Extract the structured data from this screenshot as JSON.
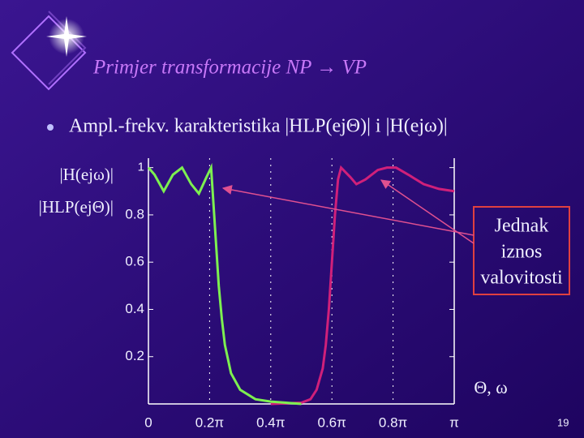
{
  "slide_title": "Primjer transformacije NP → VP",
  "bullet": "Ampl.-frekv. karakteristika |HLP(ejΘ)| i |H(ejω)|",
  "page_number": "19",
  "chart_data": {
    "type": "line",
    "xlabel": "Θ, ω",
    "annotation": [
      "Jednak",
      "iznos",
      "valovitosti"
    ],
    "xlim": [
      0,
      1
    ],
    "ylim": [
      0,
      1.04
    ],
    "xticks": [
      0,
      {
        "value": 0.2,
        "label": "0.2π"
      },
      {
        "value": 0.4,
        "label": "0.4π"
      },
      {
        "value": 0.6,
        "label": "0.6π"
      },
      {
        "value": 0.8,
        "label": "0.8π"
      },
      {
        "value": 1,
        "label": "π"
      }
    ],
    "yticks": [
      0.2,
      0.4,
      0.6,
      0.8,
      1
    ],
    "grid": true,
    "series": [
      {
        "name": "|H(ejω)|",
        "color": "#d0207a",
        "x": [
          0.4,
          0.5,
          0.53,
          0.55,
          0.57,
          0.58,
          0.59,
          0.6,
          0.61,
          0.62,
          0.63,
          0.66,
          0.68,
          0.71,
          0.75,
          0.78,
          0.81,
          0.85,
          0.9,
          0.95,
          1.0
        ],
        "values": [
          0.0,
          0.005,
          0.02,
          0.06,
          0.15,
          0.25,
          0.4,
          0.6,
          0.8,
          0.95,
          1.0,
          0.96,
          0.93,
          0.95,
          0.99,
          1.0,
          1.0,
          0.97,
          0.93,
          0.91,
          0.9
        ]
      },
      {
        "name": "|HLP(ejΘ)|",
        "color": "#7df050",
        "x": [
          0,
          0.02,
          0.05,
          0.08,
          0.11,
          0.14,
          0.165,
          0.19,
          0.205,
          0.21,
          0.22,
          0.23,
          0.24,
          0.25,
          0.27,
          0.3,
          0.35,
          0.4,
          0.45,
          0.5
        ],
        "values": [
          1.0,
          0.97,
          0.9,
          0.97,
          1.0,
          0.93,
          0.89,
          0.96,
          1.0,
          0.9,
          0.7,
          0.5,
          0.36,
          0.25,
          0.13,
          0.06,
          0.02,
          0.01,
          0.005,
          0.0
        ]
      }
    ]
  }
}
